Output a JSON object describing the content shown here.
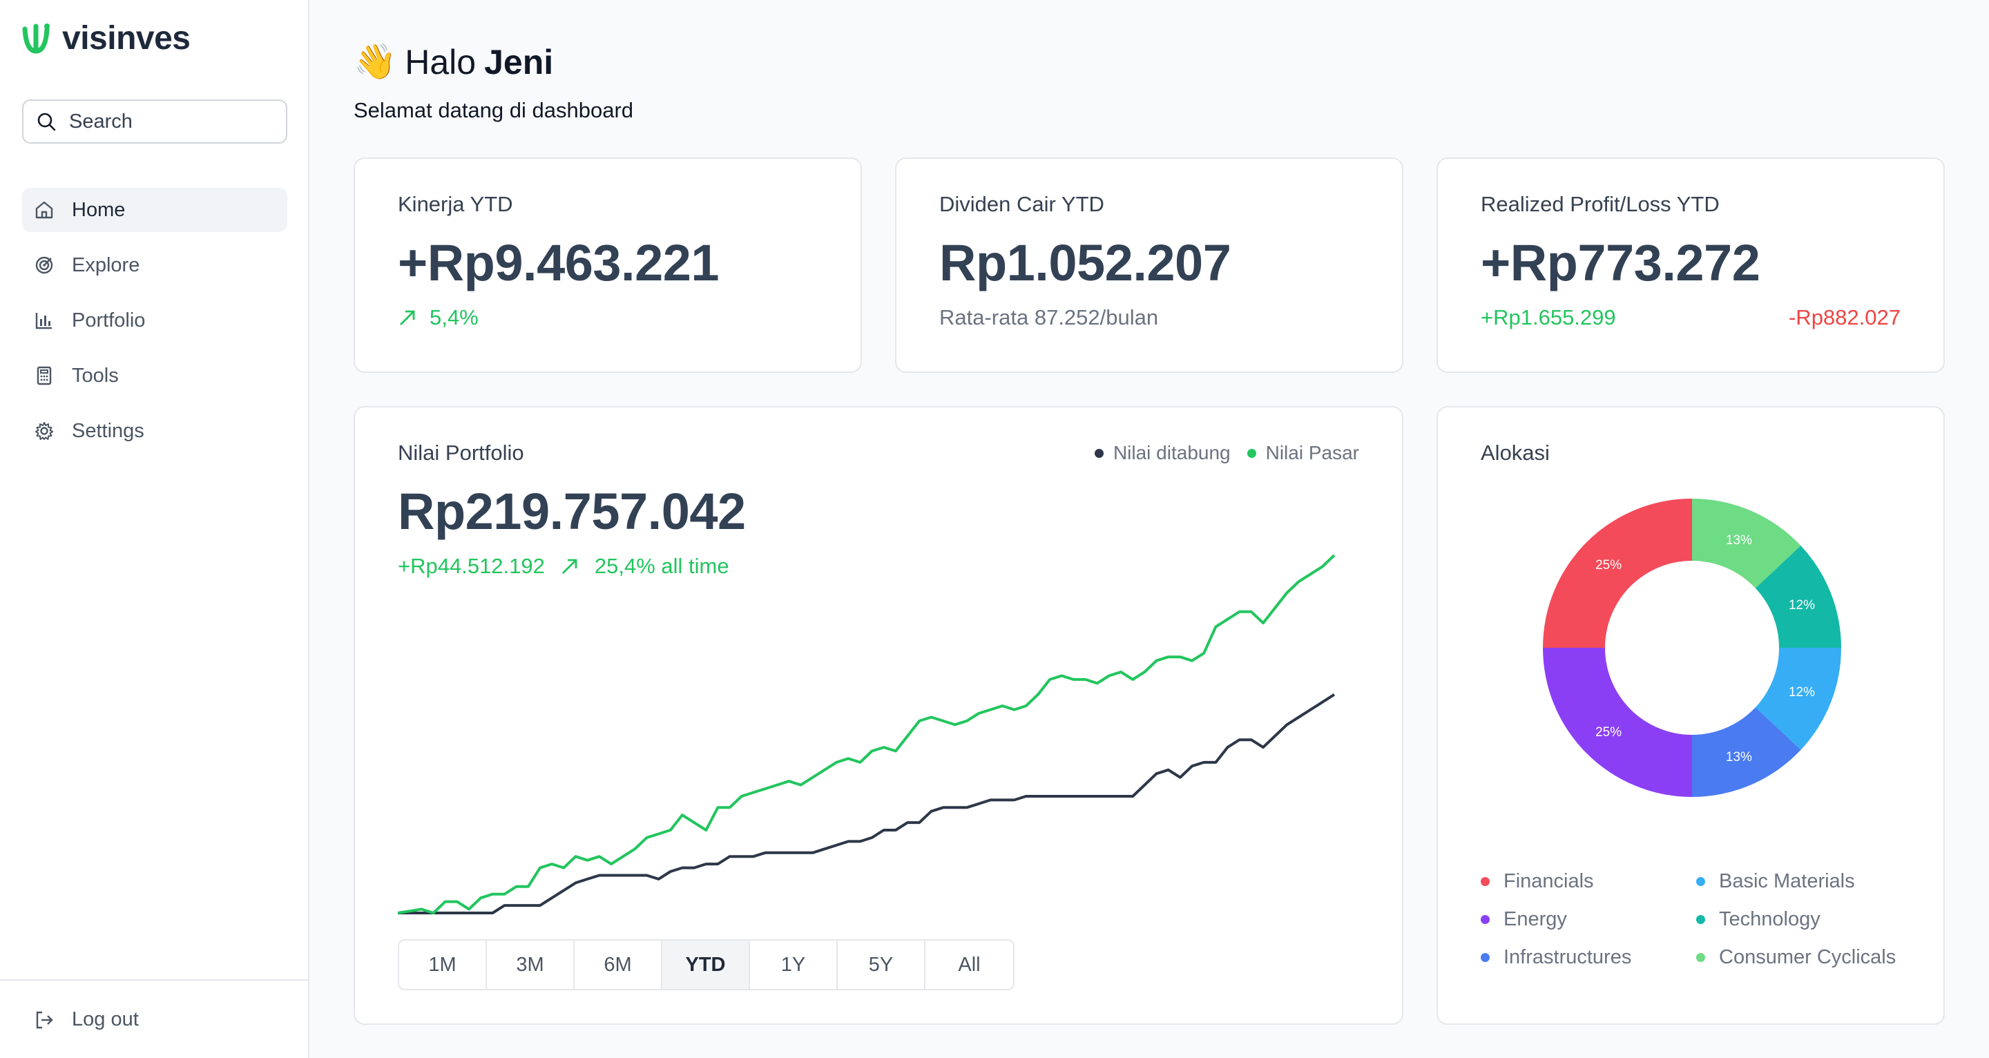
{
  "app": {
    "name": "visinves"
  },
  "search": {
    "label": "Search"
  },
  "nav": {
    "items": [
      {
        "label": "Home"
      },
      {
        "label": "Explore"
      },
      {
        "label": "Portfolio"
      },
      {
        "label": "Tools"
      },
      {
        "label": "Settings"
      }
    ],
    "active": "Home",
    "logout": "Log out"
  },
  "greeting": {
    "emoji": "👋",
    "hello": "Halo",
    "name": "Jeni",
    "subtitle": "Selamat datang di dashboard"
  },
  "cards": {
    "kinerja": {
      "title": "Kinerja YTD",
      "value": "+Rp9.463.221",
      "change": "5,4%"
    },
    "dividen": {
      "title": "Dividen Cair YTD",
      "value": "Rp1.052.207",
      "note": "Rata-rata 87.252/bulan"
    },
    "realized": {
      "title": "Realized Profit/Loss YTD",
      "value": "+Rp773.272",
      "profit": "+Rp1.655.299",
      "loss": "-Rp882.027"
    }
  },
  "portfolio": {
    "title": "Nilai Portfolio",
    "value": "Rp219.757.042",
    "gain": "+Rp44.512.192",
    "gain_pct": "25,4% all time",
    "legend": [
      "Nilai ditabung",
      "Nilai Pasar"
    ],
    "ranges": [
      "1M",
      "3M",
      "6M",
      "YTD",
      "1Y",
      "5Y",
      "All"
    ],
    "active_range": "YTD"
  },
  "alokasi": {
    "title": "Alokasi"
  },
  "colors": {
    "green": "#22c55e",
    "navy": "#2d3748",
    "financials": "#f34b5a",
    "energy": "#8b3ff5",
    "infrastructures": "#4a7bf0",
    "basic_materials": "#36adf5",
    "technology": "#14b8a6",
    "consumer_cyclicals": "#6edb85"
  },
  "chart_data": [
    {
      "type": "line",
      "series": [
        {
          "name": "Nilai Pasar",
          "color": "#22c55e",
          "values": [
            0,
            0.5,
            1,
            0,
            3,
            3,
            1,
            4,
            5,
            5,
            7,
            7,
            12,
            13,
            12,
            15,
            14,
            15,
            13,
            15,
            17,
            20,
            21,
            22,
            26,
            24,
            22,
            28,
            28,
            31,
            32,
            33,
            34,
            35,
            34,
            36,
            38,
            40,
            41,
            40,
            43,
            44,
            43,
            47,
            51,
            52,
            51,
            50,
            51,
            53,
            54,
            55,
            54,
            55,
            58,
            62,
            63,
            62,
            62,
            61,
            63,
            64,
            62,
            64,
            67,
            68,
            68,
            67,
            69,
            76,
            78,
            80,
            80,
            77,
            81,
            85,
            88,
            90,
            92,
            95
          ]
        },
        {
          "name": "Nilai ditabung",
          "color": "#2d3748",
          "values": [
            0,
            0,
            0,
            0,
            0,
            0,
            0,
            0,
            0,
            2,
            2,
            2,
            2,
            4,
            6,
            8,
            9,
            10,
            10,
            10,
            10,
            10,
            9,
            11,
            12,
            12,
            13,
            13,
            15,
            15,
            15,
            16,
            16,
            16,
            16,
            16,
            17,
            18,
            19,
            19,
            20,
            22,
            22,
            24,
            24,
            27,
            28,
            28,
            28,
            29,
            30,
            30,
            30,
            31,
            31,
            31,
            31,
            31,
            31,
            31,
            31,
            31,
            31,
            34,
            37,
            38,
            36,
            39,
            40,
            40,
            44,
            46,
            46,
            44,
            47,
            50,
            52,
            54,
            56,
            58
          ]
        }
      ]
    },
    {
      "type": "pie",
      "title": "Alokasi",
      "labels": [
        "Financials",
        "Energy",
        "Infrastructures",
        "Basic Materials",
        "Technology",
        "Consumer Cyclicals"
      ],
      "values": [
        25,
        25,
        13,
        12,
        12,
        13
      ],
      "slice_labels": [
        "25%",
        "25%",
        "13%",
        "12%",
        "12%",
        "13%"
      ],
      "colors": [
        "#f34b5a",
        "#8b3ff5",
        "#4a7bf0",
        "#36adf5",
        "#14b8a6",
        "#6edb85"
      ]
    }
  ]
}
